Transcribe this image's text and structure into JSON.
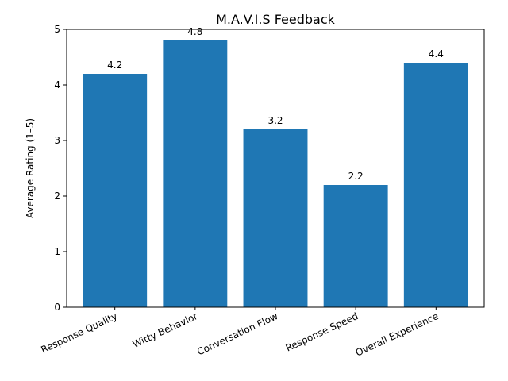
{
  "chart_data": {
    "type": "bar",
    "title": "M.A.V.I.S Feedback",
    "xlabel": "",
    "ylabel": "Average Rating (1–5)",
    "categories": [
      "Response Quality",
      "Witty Behavior",
      "Conversation Flow",
      "Response Speed",
      "Overall Experience"
    ],
    "values": [
      4.2,
      4.8,
      3.2,
      2.2,
      4.4
    ],
    "data_labels": [
      "4.2",
      "4.8",
      "3.2",
      "2.2",
      "4.4"
    ],
    "ylim": [
      0,
      5
    ],
    "yticks": [
      0,
      1,
      2,
      3,
      4,
      5
    ],
    "bar_color": "#1f77b4",
    "grid": false,
    "legend": "none"
  }
}
